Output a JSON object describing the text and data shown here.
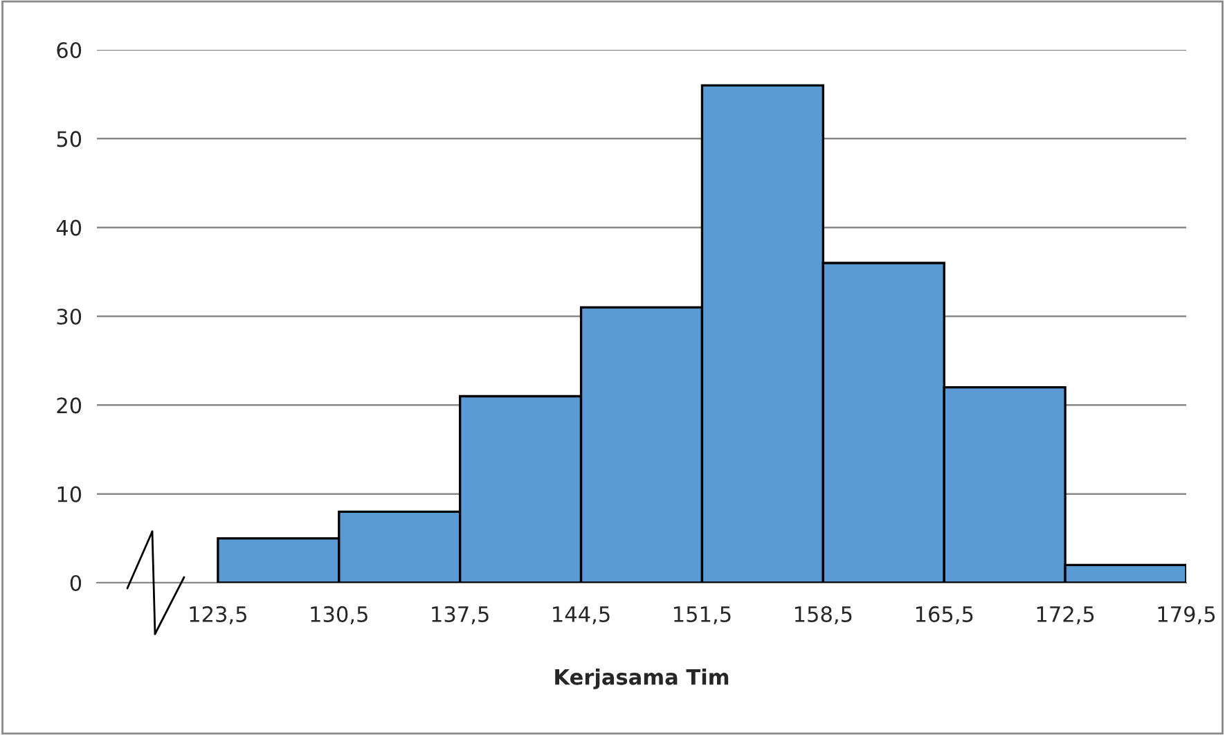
{
  "chart_data": {
    "type": "histogram",
    "xlabel": "Kerjasama Tim",
    "bins": [
      123.5,
      130.5,
      137.5,
      144.5,
      151.5,
      158.5,
      165.5,
      172.5,
      179.5
    ],
    "values": [
      5,
      8,
      21,
      31,
      56,
      36,
      22,
      2
    ],
    "color": "#5b9bd5",
    "xlim": [
      116.5,
      179.5
    ],
    "xticks": [
      {
        "value": 123.5,
        "label": "123,5"
      },
      {
        "value": 130.5,
        "label": "130,5"
      },
      {
        "value": 137.5,
        "label": "137,5"
      },
      {
        "value": 144.5,
        "label": "144,5"
      },
      {
        "value": 151.5,
        "label": "151,5"
      },
      {
        "value": 158.5,
        "label": "158,5"
      },
      {
        "value": 165.5,
        "label": "165,5"
      },
      {
        "value": 172.5,
        "label": "172,5"
      },
      {
        "value": 179.5,
        "label": "179,5"
      }
    ],
    "ylim": [
      0,
      60
    ],
    "yticks": [
      0,
      10,
      20,
      30,
      40,
      50,
      60
    ],
    "grid": "y"
  }
}
